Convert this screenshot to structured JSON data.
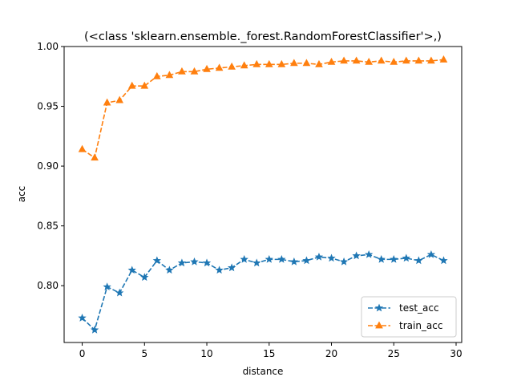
{
  "chart_data": {
    "type": "line",
    "title": "(<class 'sklearn.ensemble._forest.RandomForestClassifier'>,)",
    "xlabel": "distance",
    "ylabel": "acc",
    "xlim": [
      -1.45,
      30.45
    ],
    "ylim": [
      0.7525,
      1.0
    ],
    "xticks": [
      0,
      5,
      10,
      15,
      20,
      25,
      30
    ],
    "xtick_labels": [
      "0",
      "5",
      "10",
      "15",
      "20",
      "25",
      "30"
    ],
    "yticks": [
      0.8,
      0.85,
      0.9,
      0.95,
      1.0
    ],
    "ytick_labels": [
      "0.80",
      "0.85",
      "0.90",
      "0.95",
      "1.00"
    ],
    "grid": false,
    "legend_position": "lower-right",
    "x": [
      0,
      1,
      2,
      3,
      4,
      5,
      6,
      7,
      8,
      9,
      10,
      11,
      12,
      13,
      14,
      15,
      16,
      17,
      18,
      19,
      20,
      21,
      22,
      23,
      24,
      25,
      26,
      27,
      28,
      29
    ],
    "series": [
      {
        "name": "test_acc",
        "color": "#1f77b4",
        "marker": "star",
        "linestyle": "dashed",
        "values": [
          0.773,
          0.763,
          0.799,
          0.794,
          0.813,
          0.807,
          0.821,
          0.813,
          0.819,
          0.82,
          0.819,
          0.813,
          0.815,
          0.822,
          0.819,
          0.822,
          0.822,
          0.82,
          0.821,
          0.824,
          0.823,
          0.82,
          0.825,
          0.826,
          0.822,
          0.822,
          0.823,
          0.821,
          0.826,
          0.821
        ]
      },
      {
        "name": "train_acc",
        "color": "#ff7f0e",
        "marker": "triangle",
        "linestyle": "dashed",
        "values": [
          0.914,
          0.907,
          0.953,
          0.955,
          0.967,
          0.967,
          0.975,
          0.976,
          0.979,
          0.979,
          0.981,
          0.982,
          0.983,
          0.984,
          0.985,
          0.985,
          0.985,
          0.986,
          0.986,
          0.985,
          0.987,
          0.988,
          0.988,
          0.987,
          0.988,
          0.987,
          0.988,
          0.988,
          0.988,
          0.989
        ]
      }
    ]
  }
}
